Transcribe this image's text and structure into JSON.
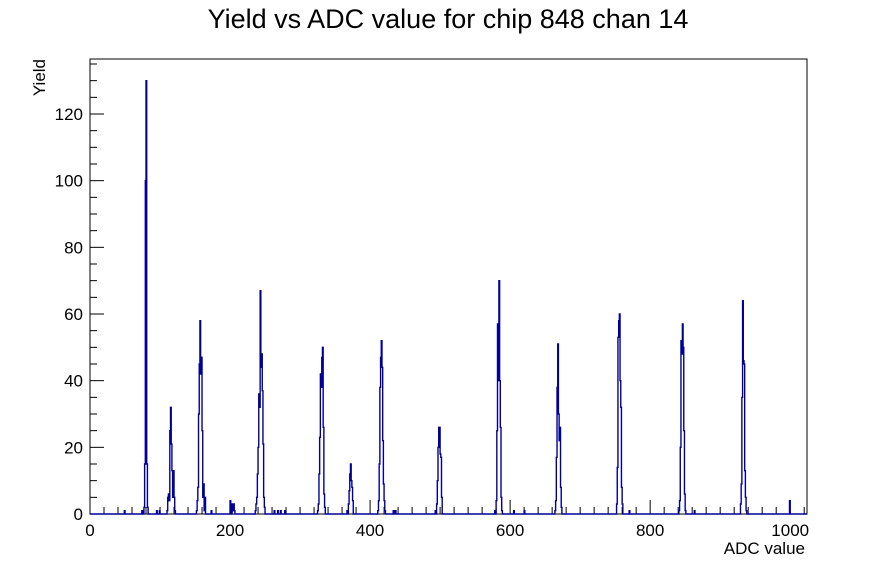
{
  "chart_data": {
    "type": "histogram",
    "title": "Yield vs ADC value for chip 848 chan 14",
    "xlabel": "ADC value",
    "ylabel": "Yield",
    "xlim": [
      0,
      1024
    ],
    "ylim": [
      0,
      136.5
    ],
    "x_ticks": [
      0,
      200,
      400,
      600,
      800,
      1000
    ],
    "y_ticks": [
      0,
      20,
      40,
      60,
      80,
      100,
      120
    ],
    "line_color": "#000099",
    "bins": [
      [
        49,
        1
      ],
      [
        74,
        1
      ],
      [
        77,
        2
      ],
      [
        78,
        15
      ],
      [
        79,
        100
      ],
      [
        80,
        130
      ],
      [
        81,
        15
      ],
      [
        82,
        2
      ],
      [
        95,
        1
      ],
      [
        99,
        1
      ],
      [
        110,
        1
      ],
      [
        111,
        5
      ],
      [
        112,
        6
      ],
      [
        113,
        4
      ],
      [
        114,
        25
      ],
      [
        115,
        32
      ],
      [
        116,
        21
      ],
      [
        117,
        13
      ],
      [
        118,
        5
      ],
      [
        119,
        13
      ],
      [
        120,
        5
      ],
      [
        121,
        1
      ],
      [
        152,
        1
      ],
      [
        153,
        4
      ],
      [
        154,
        8
      ],
      [
        155,
        30
      ],
      [
        156,
        45
      ],
      [
        157,
        58
      ],
      [
        158,
        42
      ],
      [
        159,
        47
      ],
      [
        160,
        25
      ],
      [
        161,
        5
      ],
      [
        162,
        9
      ],
      [
        163,
        1
      ],
      [
        164,
        5
      ],
      [
        173,
        1
      ],
      [
        200,
        4
      ],
      [
        201,
        1
      ],
      [
        203,
        3
      ],
      [
        204,
        1
      ],
      [
        205,
        3
      ],
      [
        206,
        1
      ],
      [
        236,
        1
      ],
      [
        237,
        3
      ],
      [
        238,
        5
      ],
      [
        239,
        12
      ],
      [
        240,
        20
      ],
      [
        241,
        36
      ],
      [
        242,
        32
      ],
      [
        243,
        67
      ],
      [
        244,
        44
      ],
      [
        245,
        48
      ],
      [
        246,
        37
      ],
      [
        247,
        21
      ],
      [
        248,
        5
      ],
      [
        249,
        2
      ],
      [
        263,
        1
      ],
      [
        268,
        1
      ],
      [
        272,
        1
      ],
      [
        278,
        1
      ],
      [
        325,
        1
      ],
      [
        326,
        3
      ],
      [
        327,
        12
      ],
      [
        328,
        23
      ],
      [
        329,
        42
      ],
      [
        330,
        38
      ],
      [
        331,
        47
      ],
      [
        332,
        50
      ],
      [
        333,
        26
      ],
      [
        334,
        6
      ],
      [
        335,
        2
      ],
      [
        367,
        1
      ],
      [
        369,
        3
      ],
      [
        370,
        7
      ],
      [
        371,
        12
      ],
      [
        372,
        15
      ],
      [
        373,
        10
      ],
      [
        374,
        8
      ],
      [
        375,
        4
      ],
      [
        411,
        1
      ],
      [
        412,
        4
      ],
      [
        413,
        15
      ],
      [
        414,
        38
      ],
      [
        415,
        47
      ],
      [
        416,
        52
      ],
      [
        417,
        44
      ],
      [
        418,
        22
      ],
      [
        419,
        9
      ],
      [
        420,
        4
      ],
      [
        421,
        1
      ],
      [
        433,
        1
      ],
      [
        436,
        1
      ],
      [
        493,
        1
      ],
      [
        495,
        3
      ],
      [
        496,
        10
      ],
      [
        497,
        20
      ],
      [
        498,
        26
      ],
      [
        499,
        26
      ],
      [
        500,
        18
      ],
      [
        501,
        17
      ],
      [
        502,
        5
      ],
      [
        578,
        1
      ],
      [
        580,
        4
      ],
      [
        581,
        25
      ],
      [
        582,
        57
      ],
      [
        583,
        40
      ],
      [
        584,
        70
      ],
      [
        585,
        40
      ],
      [
        586,
        26
      ],
      [
        587,
        5
      ],
      [
        588,
        1
      ],
      [
        605,
        1
      ],
      [
        620,
        1
      ],
      [
        664,
        1
      ],
      [
        665,
        4
      ],
      [
        666,
        17
      ],
      [
        667,
        38
      ],
      [
        668,
        51
      ],
      [
        669,
        30
      ],
      [
        670,
        22
      ],
      [
        671,
        26
      ],
      [
        672,
        8
      ],
      [
        673,
        2
      ],
      [
        752,
        3
      ],
      [
        753,
        14
      ],
      [
        754,
        53
      ],
      [
        755,
        58
      ],
      [
        756,
        60
      ],
      [
        757,
        40
      ],
      [
        758,
        32
      ],
      [
        759,
        8
      ],
      [
        760,
        3
      ],
      [
        770,
        1
      ],
      [
        841,
        1
      ],
      [
        842,
        4
      ],
      [
        843,
        20
      ],
      [
        844,
        52
      ],
      [
        845,
        48
      ],
      [
        846,
        57
      ],
      [
        847,
        50
      ],
      [
        848,
        25
      ],
      [
        849,
        6
      ],
      [
        850,
        1
      ],
      [
        863,
        1
      ],
      [
        929,
        3
      ],
      [
        930,
        9
      ],
      [
        931,
        35
      ],
      [
        932,
        64
      ],
      [
        933,
        46
      ],
      [
        934,
        45
      ],
      [
        935,
        13
      ],
      [
        936,
        5
      ],
      [
        937,
        1
      ],
      [
        999,
        4
      ]
    ]
  }
}
